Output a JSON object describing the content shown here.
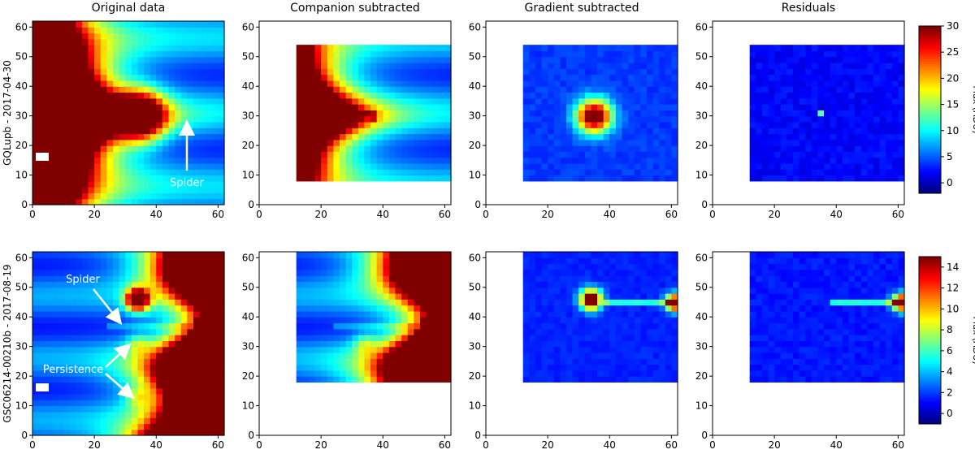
{
  "figure": {
    "column_titles": [
      "Original data",
      "Companion subtracted",
      "Gradient subtracted",
      "Residuals"
    ],
    "row_labels": [
      "GQLupb - 2017-04-30",
      "GSC06214-00210b - 2017-08-19"
    ],
    "colorbar_label": "Flux (ADU)",
    "colormap": "jet",
    "annotations": {
      "row1": [
        {
          "text": "Spider"
        }
      ],
      "row2": [
        {
          "text": "Spider"
        },
        {
          "text": "Persistence"
        }
      ]
    }
  },
  "chart_data": [
    {
      "type": "heatmap",
      "title": "Original data",
      "row": "GQLupb - 2017-04-30",
      "xlim": [
        0,
        62
      ],
      "ylim": [
        0,
        62
      ],
      "xticks": [
        0,
        20,
        40,
        60
      ],
      "yticks": [
        0,
        10,
        20,
        30,
        40,
        50,
        60
      ],
      "clim": [
        -2,
        30
      ],
      "colorbar_ticks": [
        0,
        5,
        10,
        15,
        20,
        25,
        30
      ],
      "features": [
        {
          "name": "companion",
          "x": 35,
          "y": 30
        },
        {
          "name": "spider",
          "y": 30,
          "x_range": [
            35,
            60
          ]
        }
      ]
    },
    {
      "type": "heatmap",
      "title": "Companion subtracted",
      "row": "GQLupb - 2017-04-30",
      "xlim": [
        0,
        62
      ],
      "ylim": [
        0,
        62
      ],
      "xticks": [
        0,
        20,
        40,
        60
      ],
      "yticks": [
        0,
        10,
        20,
        30,
        40,
        50,
        60
      ],
      "clim": [
        -2,
        30
      ],
      "data_extent": {
        "x": [
          12,
          62
        ],
        "y": [
          9,
          54
        ]
      }
    },
    {
      "type": "heatmap",
      "title": "Gradient subtracted",
      "row": "GQLupb - 2017-04-30",
      "xlim": [
        0,
        62
      ],
      "ylim": [
        0,
        62
      ],
      "xticks": [
        0,
        20,
        40,
        60
      ],
      "yticks": [
        0,
        10,
        20,
        30,
        40,
        50,
        60
      ],
      "clim": [
        -2,
        30
      ],
      "data_extent": {
        "x": [
          12,
          62
        ],
        "y": [
          9,
          54
        ]
      }
    },
    {
      "type": "heatmap",
      "title": "Residuals",
      "row": "GQLupb - 2017-04-30",
      "xlim": [
        0,
        62
      ],
      "ylim": [
        0,
        62
      ],
      "xticks": [
        0,
        20,
        40,
        60
      ],
      "yticks": [
        0,
        10,
        20,
        30,
        40,
        50,
        60
      ],
      "clim": [
        -2,
        30
      ],
      "data_extent": {
        "x": [
          12,
          62
        ],
        "y": [
          9,
          54
        ]
      }
    },
    {
      "type": "heatmap",
      "title": "Original data",
      "row": "GSC06214-00210b - 2017-08-19",
      "xlim": [
        0,
        62
      ],
      "ylim": [
        0,
        62
      ],
      "xticks": [
        0,
        20,
        40,
        60
      ],
      "yticks": [
        0,
        10,
        20,
        30,
        40,
        50,
        60
      ],
      "clim": [
        -1,
        15
      ],
      "colorbar_ticks": [
        0,
        2,
        4,
        6,
        8,
        10,
        12,
        14
      ],
      "features": [
        {
          "name": "companion",
          "x": 34,
          "y": 46
        },
        {
          "name": "spider",
          "y": 37
        },
        {
          "name": "persistence",
          "x": 34,
          "y": 31
        },
        {
          "name": "persistence",
          "x": 34,
          "y": 13
        }
      ]
    },
    {
      "type": "heatmap",
      "title": "Companion subtracted",
      "row": "GSC06214-00210b - 2017-08-19",
      "xlim": [
        0,
        62
      ],
      "ylim": [
        0,
        62
      ],
      "xticks": [
        0,
        20,
        40,
        60
      ],
      "yticks": [
        0,
        10,
        20,
        30,
        40,
        50,
        60
      ],
      "clim": [
        -1,
        15
      ],
      "data_extent": {
        "x": [
          12,
          62
        ],
        "y": [
          19,
          61
        ]
      }
    },
    {
      "type": "heatmap",
      "title": "Gradient subtracted",
      "row": "GSC06214-00210b - 2017-08-19",
      "xlim": [
        0,
        62
      ],
      "ylim": [
        0,
        62
      ],
      "xticks": [
        0,
        20,
        40,
        60
      ],
      "yticks": [
        0,
        10,
        20,
        30,
        40,
        50,
        60
      ],
      "clim": [
        -1,
        15
      ],
      "data_extent": {
        "x": [
          12,
          62
        ],
        "y": [
          19,
          61
        ]
      }
    },
    {
      "type": "heatmap",
      "title": "Residuals",
      "row": "GSC06214-00210b - 2017-08-19",
      "xlim": [
        0,
        62
      ],
      "ylim": [
        0,
        62
      ],
      "xticks": [
        0,
        20,
        40,
        60
      ],
      "yticks": [
        0,
        10,
        20,
        30,
        40,
        50,
        60
      ],
      "clim": [
        -1,
        15
      ],
      "data_extent": {
        "x": [
          12,
          62
        ],
        "y": [
          19,
          61
        ]
      }
    }
  ]
}
